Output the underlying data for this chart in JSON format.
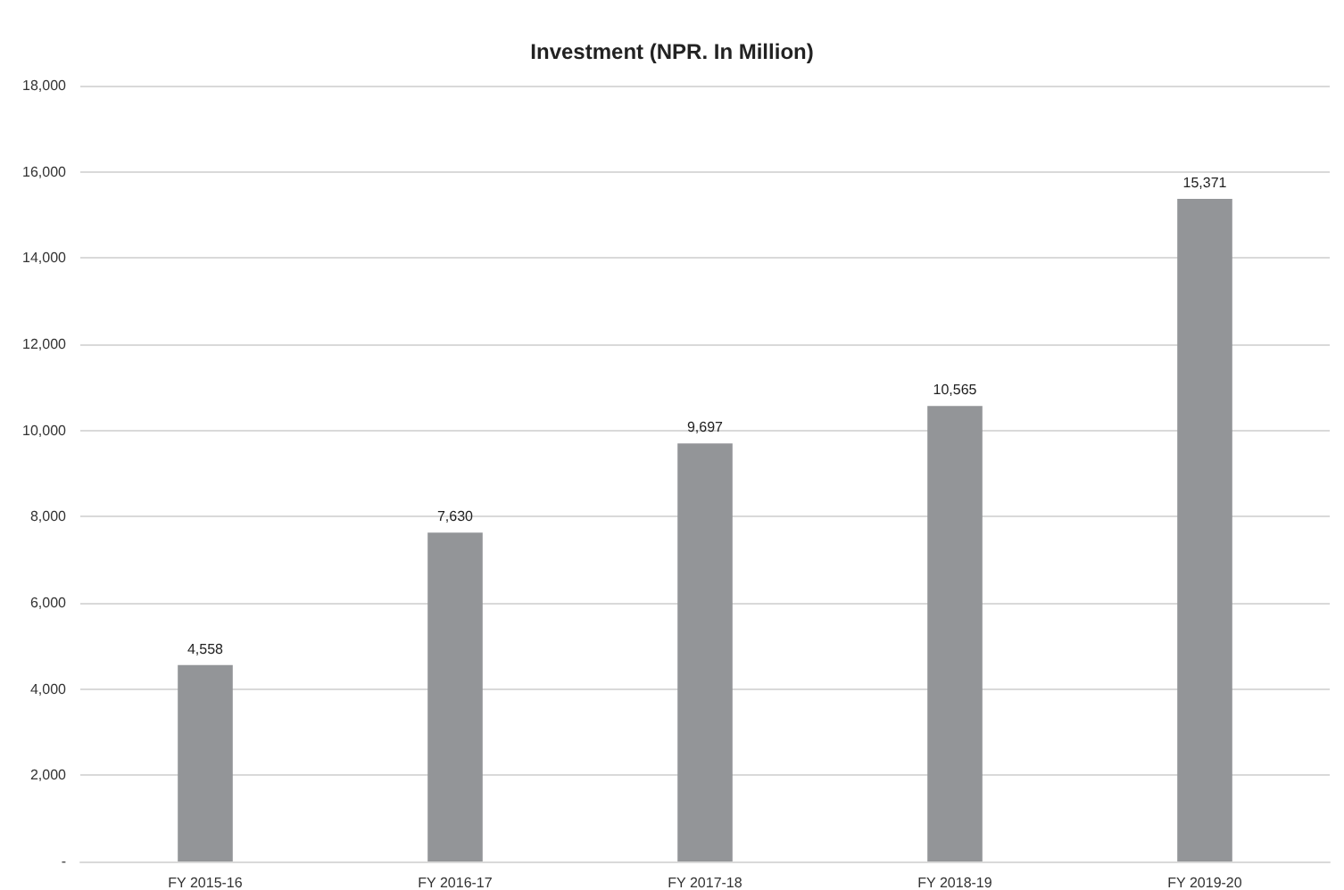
{
  "chart_data": {
    "type": "bar",
    "title": "Investment (NPR. In Million)",
    "categories": [
      "FY 2015-16",
      "FY 2016-17",
      "FY 2017-18",
      "FY 2018-19",
      "FY 2019-20"
    ],
    "values": [
      4558,
      7630,
      9697,
      10565,
      15371
    ],
    "value_labels": [
      "4,558",
      "7,630",
      "9,697",
      "10,565",
      "15,371"
    ],
    "color": "#939598",
    "ylim": [
      0,
      18000
    ],
    "yticks": [
      {
        "value": 0,
        "label": "-"
      },
      {
        "value": 2000,
        "label": "2,000"
      },
      {
        "value": 4000,
        "label": "4,000"
      },
      {
        "value": 6000,
        "label": "6,000"
      },
      {
        "value": 8000,
        "label": "8,000"
      },
      {
        "value": 10000,
        "label": "10,000"
      },
      {
        "value": 12000,
        "label": "12,000"
      },
      {
        "value": 14000,
        "label": "14,000"
      },
      {
        "value": 16000,
        "label": "16,000"
      },
      {
        "value": 18000,
        "label": "18,000"
      }
    ],
    "grid": "y"
  }
}
